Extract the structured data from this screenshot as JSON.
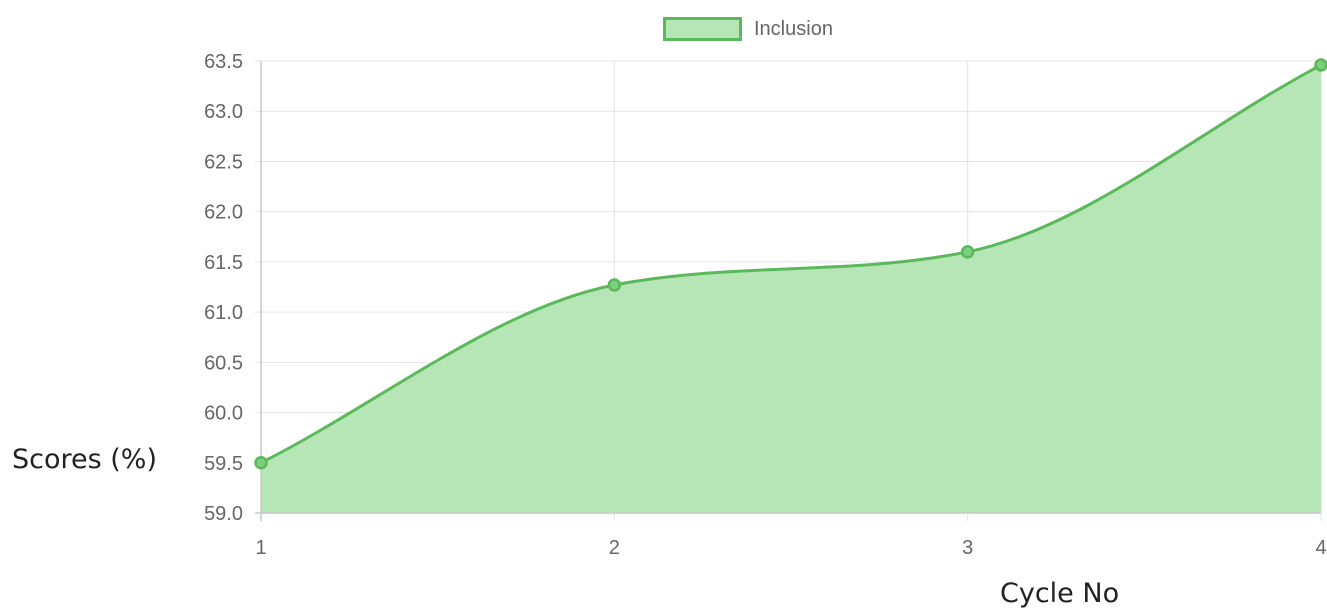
{
  "chart_data": {
    "type": "area",
    "x": [
      1,
      2,
      3,
      4
    ],
    "xticks": [
      "1",
      "2",
      "3",
      "4"
    ],
    "series": [
      {
        "name": "Inclusion",
        "values": [
          59.5,
          61.27,
          61.6,
          63.46
        ]
      }
    ],
    "xlabel": "Cycle No",
    "ylabel": "Scores (%)",
    "ylim": [
      59.0,
      63.5
    ],
    "yticks": [
      59.0,
      59.5,
      60.0,
      60.5,
      61.0,
      61.5,
      62.0,
      62.5,
      63.0,
      63.5
    ],
    "grid": true,
    "legend_position": "top",
    "colors": {
      "line": "#5cb85c",
      "fill": "#b6e6b6",
      "point": "#7ccf7c",
      "grid": "#e4e4e4",
      "axis": "#c8c8c8"
    }
  }
}
